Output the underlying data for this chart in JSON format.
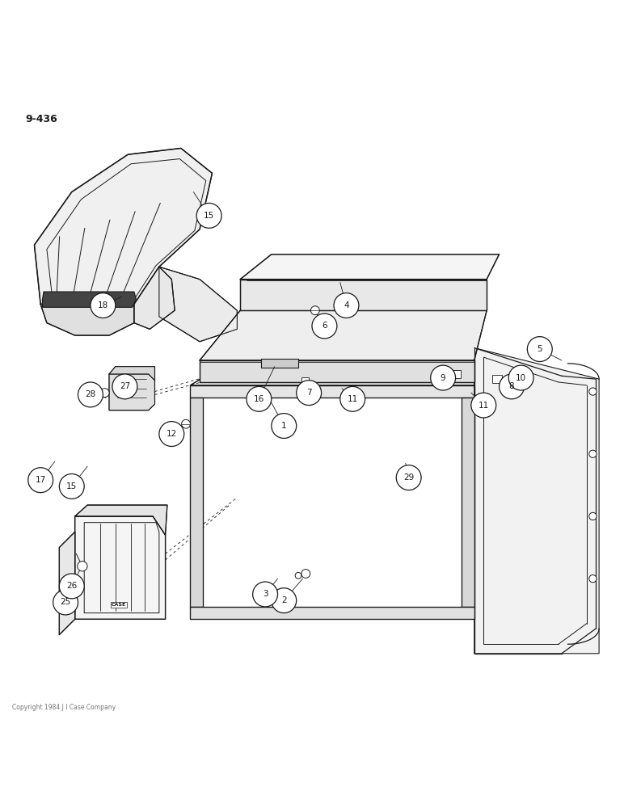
{
  "page_label": "9-436",
  "background_color": "#ffffff",
  "line_color": "#1a1a1a",
  "figsize": [
    7.72,
    10.0
  ],
  "dpi": 100,
  "footer_text": "Copyright 1984 J I Case Company",
  "label_circles": [
    [
      1,
      0.455,
      0.465
    ],
    [
      2,
      0.455,
      0.185
    ],
    [
      3,
      0.425,
      0.195
    ],
    [
      4,
      0.555,
      0.658
    ],
    [
      5,
      0.865,
      0.588
    ],
    [
      6,
      0.52,
      0.625
    ],
    [
      7,
      0.495,
      0.518
    ],
    [
      8,
      0.82,
      0.528
    ],
    [
      9,
      0.71,
      0.542
    ],
    [
      10,
      0.835,
      0.542
    ],
    [
      11,
      0.775,
      0.498
    ],
    [
      11,
      0.565,
      0.508
    ],
    [
      12,
      0.275,
      0.452
    ],
    [
      15,
      0.335,
      0.802
    ],
    [
      15,
      0.115,
      0.368
    ],
    [
      16,
      0.415,
      0.508
    ],
    [
      17,
      0.065,
      0.378
    ],
    [
      18,
      0.165,
      0.658
    ],
    [
      25,
      0.105,
      0.182
    ],
    [
      26,
      0.115,
      0.208
    ],
    [
      27,
      0.2,
      0.528
    ],
    [
      28,
      0.145,
      0.515
    ],
    [
      29,
      0.655,
      0.382
    ]
  ]
}
